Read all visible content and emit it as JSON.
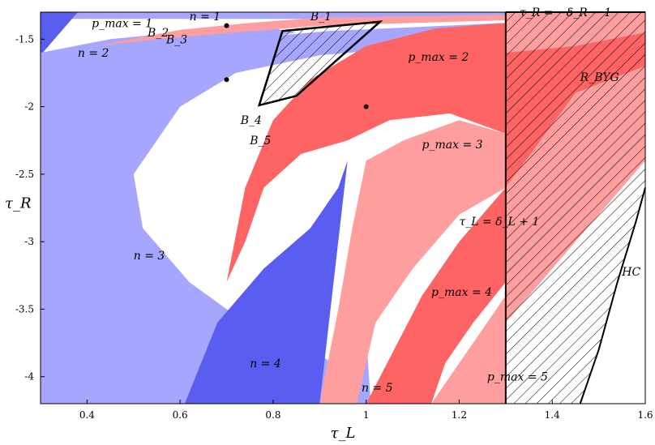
{
  "chart_data": {
    "type": "region-map",
    "xlabel": "τ_L",
    "ylabel": "τ_R",
    "xlim": [
      0.3,
      1.6
    ],
    "ylim": [
      -4.2,
      -1.3
    ],
    "xticks": [
      0.4,
      0.6,
      0.8,
      1,
      1.2,
      1.4,
      1.6
    ],
    "xtick_labels": [
      "0.4",
      "0.6",
      "0.8",
      "1",
      "1.2",
      "1.4",
      "1.6"
    ],
    "yticks": [
      -1.5,
      -2,
      -2.5,
      -3,
      -3.5,
      -4
    ],
    "ytick_labels": [
      "-1.5",
      "-2",
      "-2.5",
      "-3",
      "-3.5",
      "-4"
    ],
    "colors": {
      "n_light": "#a6a6ff",
      "n_dark": "#5a5ef0",
      "p_light": "#ff9e9e",
      "p_dark": "#ff6464",
      "top_band": "#a6a6ff"
    },
    "region_labels": [
      {
        "text": "n = 1",
        "x": 0.62,
        "y": -1.33
      },
      {
        "text": "n = 2",
        "x": 0.38,
        "y": -1.6
      },
      {
        "text": "n = 3",
        "x": 0.5,
        "y": -3.1
      },
      {
        "text": "n = 4",
        "x": 0.75,
        "y": -3.9
      },
      {
        "text": "n = 5",
        "x": 0.99,
        "y": -4.08
      },
      {
        "text": "p_max = 1",
        "x": 0.41,
        "y": -1.38
      },
      {
        "text": "p_max = 2",
        "x": 1.09,
        "y": -1.63
      },
      {
        "text": "p_max = 3",
        "x": 1.12,
        "y": -2.28
      },
      {
        "text": "p_max = 4",
        "x": 1.14,
        "y": -3.37
      },
      {
        "text": "p_max = 5",
        "x": 1.26,
        "y": -4.0
      },
      {
        "text": "B_1",
        "x": 0.88,
        "y": -1.33
      },
      {
        "text": "B_2",
        "x": 0.53,
        "y": -1.45
      },
      {
        "text": "B_3",
        "x": 0.57,
        "y": -1.5
      },
      {
        "text": "B_4",
        "x": 0.73,
        "y": -2.1
      },
      {
        "text": "B_5",
        "x": 0.75,
        "y": -2.25
      },
      {
        "text": "τ_R = −δ_R − 1",
        "x": 1.33,
        "y": -1.3
      },
      {
        "text": "τ_L = δ_L + 1",
        "x": 1.2,
        "y": -2.85
      },
      {
        "text": "R_BYG",
        "x": 1.46,
        "y": -1.78
      },
      {
        "text": "HC",
        "x": 1.55,
        "y": -3.22
      }
    ],
    "points": [
      {
        "x": 0.7,
        "y": -1.4
      },
      {
        "x": 0.7,
        "y": -1.8
      },
      {
        "x": 1.0,
        "y": -2.0
      }
    ],
    "curves": {
      "tau_R_line": {
        "y": -1.3,
        "x_range": [
          1.3,
          1.6
        ]
      },
      "tau_L_line": {
        "x": 1.3,
        "y_range": [
          -4.2,
          -1.3
        ]
      },
      "HC": [
        [
          1.46,
          -4.2
        ],
        [
          1.5,
          -3.8
        ],
        [
          1.54,
          -3.3
        ],
        [
          1.58,
          -2.85
        ],
        [
          1.6,
          -2.6
        ]
      ],
      "B_polygon": [
        [
          0.82,
          -1.44
        ],
        [
          1.03,
          -1.37
        ],
        [
          0.85,
          -1.92
        ],
        [
          0.77,
          -1.99
        ]
      ]
    },
    "grid": false
  }
}
